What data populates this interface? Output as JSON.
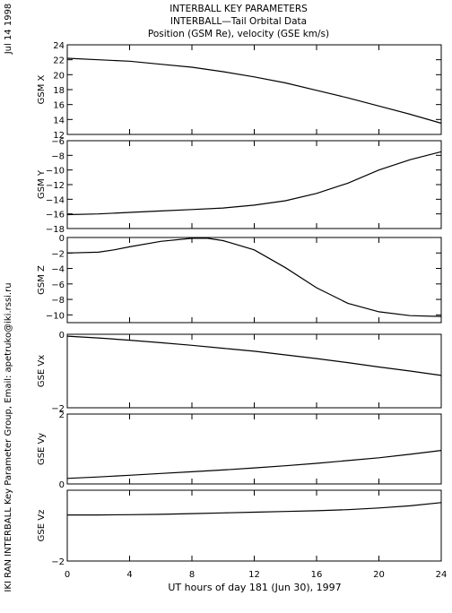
{
  "header": {
    "title_line1": "INTERBALL KEY PARAMETERS",
    "title_line2": "INTERBALL—Tail Orbital Data",
    "title_line3": "Position (GSM Re), velocity (GSE km/s)",
    "date_label": "Jul 14 1998",
    "credit_label": "IKI RAN INTERBALL Key Parameter Group, Email: apetruko@iki.rssi.ru"
  },
  "chart_data": {
    "type": "line",
    "xlabel": "UT hours of day 181 (Jun 30), 1997",
    "xlim": [
      0,
      24
    ],
    "xticks": [
      0,
      4,
      8,
      12,
      16,
      20,
      24
    ],
    "grid": false,
    "panels": [
      {
        "ylabel": "GSM X",
        "ylim": [
          12,
          24
        ],
        "yticks": [
          12,
          14,
          16,
          18,
          20,
          22,
          24
        ],
        "x": [
          0,
          2,
          4,
          6,
          8,
          10,
          12,
          14,
          16,
          18,
          20,
          22,
          24
        ],
        "values": [
          22.2,
          22.0,
          21.8,
          21.4,
          21.0,
          20.4,
          19.7,
          18.9,
          17.9,
          16.9,
          15.8,
          14.7,
          13.5
        ]
      },
      {
        "ylabel": "GSM Y",
        "ylim": [
          -18,
          -6
        ],
        "yticks": [
          -18,
          -16,
          -14,
          -12,
          -10,
          -8,
          -6
        ],
        "x": [
          0,
          2,
          4,
          6,
          8,
          10,
          12,
          14,
          16,
          18,
          20,
          22,
          24
        ],
        "values": [
          -16.1,
          -16.0,
          -15.8,
          -15.6,
          -15.4,
          -15.2,
          -14.8,
          -14.2,
          -13.2,
          -11.8,
          -10.0,
          -8.6,
          -7.5
        ]
      },
      {
        "ylabel": "GSM Z",
        "ylim": [
          -11,
          0
        ],
        "yticks": [
          -10,
          -8,
          -6,
          -4,
          -2,
          0
        ],
        "x": [
          0,
          2,
          3,
          4,
          6,
          8,
          9,
          10,
          12,
          14,
          16,
          18,
          20,
          22,
          24
        ],
        "values": [
          -2.0,
          -1.9,
          -1.6,
          -1.2,
          -0.5,
          -0.1,
          -0.1,
          -0.4,
          -1.6,
          -3.9,
          -6.5,
          -8.5,
          -9.6,
          -10.1,
          -10.2
        ]
      },
      {
        "ylabel": "GSE Vx",
        "ylim": [
          -2,
          0
        ],
        "yticks": [
          -2,
          0
        ],
        "x": [
          0,
          2,
          4,
          6,
          8,
          10,
          12,
          14,
          16,
          18,
          20,
          22,
          24
        ],
        "values": [
          -0.05,
          -0.1,
          -0.16,
          -0.23,
          -0.3,
          -0.38,
          -0.46,
          -0.56,
          -0.66,
          -0.77,
          -0.89,
          -1.0,
          -1.12
        ]
      },
      {
        "ylabel": "GSE Vy",
        "ylim": [
          0,
          2
        ],
        "yticks": [
          0,
          2
        ],
        "x": [
          0,
          2,
          4,
          6,
          8,
          10,
          12,
          14,
          16,
          18,
          20,
          22,
          24
        ],
        "values": [
          0.16,
          0.2,
          0.25,
          0.3,
          0.35,
          0.4,
          0.46,
          0.52,
          0.59,
          0.67,
          0.75,
          0.85,
          0.96
        ]
      },
      {
        "ylabel": "GSE Vz",
        "ylim": [
          -2,
          0
        ],
        "yticks": [
          -2
        ],
        "x": [
          0,
          2,
          4,
          6,
          8,
          10,
          12,
          14,
          16,
          18,
          20,
          22,
          24
        ],
        "values": [
          -0.7,
          -0.7,
          -0.69,
          -0.68,
          -0.66,
          -0.64,
          -0.62,
          -0.6,
          -0.58,
          -0.55,
          -0.5,
          -0.44,
          -0.35
        ]
      }
    ]
  }
}
